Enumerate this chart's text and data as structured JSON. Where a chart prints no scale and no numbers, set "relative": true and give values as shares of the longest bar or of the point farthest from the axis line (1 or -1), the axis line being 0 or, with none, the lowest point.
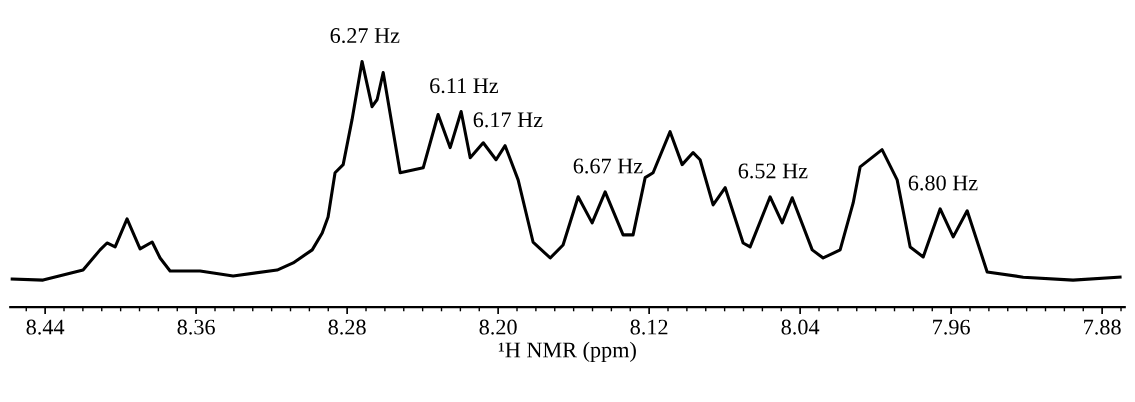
{
  "chart_data": {
    "type": "line",
    "relative": true,
    "xlabel": "¹H NMR (ppm)",
    "xlim": [
      8.4585,
      7.868
    ],
    "xticks": [
      8.44,
      8.36,
      8.28,
      {
        "value": 8.2,
        "label": "8.20"
      },
      8.12,
      8.04,
      7.96,
      7.88
    ],
    "grid": false,
    "legend": false,
    "marker": "none",
    "line_style": "solid",
    "series": [
      {
        "color": "#000000",
        "x": [
          8.4575,
          8.4411,
          8.4199,
          8.4109,
          8.4072,
          8.4029,
          8.3966,
          8.3897,
          8.3833,
          8.3791,
          8.3738,
          8.3579,
          8.3404,
          8.3171,
          8.3086,
          8.2985,
          8.2932,
          8.2901,
          8.2864,
          8.2821,
          8.2774,
          8.2721,
          8.2668,
          8.2641,
          8.2609,
          8.2519,
          8.2397,
          8.2318,
          8.2254,
          8.2196,
          8.2148,
          8.2079,
          8.2011,
          8.1963,
          8.1894,
          8.1815,
          8.1724,
          8.1656,
          8.1576,
          8.1502,
          8.1433,
          8.1338,
          8.1285,
          8.1221,
          8.1179,
          8.1089,
          8.1025,
          8.0967,
          8.093,
          8.0861,
          8.0797,
          8.0702,
          8.0665,
          8.0559,
          8.0495,
          8.0442,
          8.0336,
          8.0278,
          8.0188,
          8.0119,
          8.0082,
          7.9966,
          7.9886,
          7.9817,
          7.9748,
          7.9658,
          7.9589,
          7.9515,
          7.9409,
          7.9218,
          7.8954,
          7.8705
        ],
        "values": [
          0.114,
          0.11,
          0.151,
          0.233,
          0.261,
          0.245,
          0.359,
          0.237,
          0.265,
          0.2,
          0.147,
          0.147,
          0.127,
          0.151,
          0.18,
          0.233,
          0.302,
          0.367,
          0.547,
          0.58,
          0.763,
          1.0,
          0.816,
          0.845,
          0.955,
          0.547,
          0.567,
          0.784,
          0.649,
          0.796,
          0.608,
          0.669,
          0.6,
          0.657,
          0.518,
          0.265,
          0.2,
          0.253,
          0.449,
          0.343,
          0.469,
          0.294,
          0.294,
          0.527,
          0.547,
          0.714,
          0.58,
          0.629,
          0.6,
          0.416,
          0.486,
          0.261,
          0.245,
          0.449,
          0.343,
          0.445,
          0.233,
          0.2,
          0.233,
          0.424,
          0.571,
          0.641,
          0.518,
          0.245,
          0.204,
          0.4,
          0.286,
          0.392,
          0.143,
          0.122,
          0.11,
          0.122
        ]
      }
    ],
    "annotations": [
      {
        "text": "6.27 Hz",
        "x": 8.2721,
        "y": 1.0
      },
      {
        "text": "6.11 Hz",
        "x": 8.2196,
        "y": 0.796
      },
      {
        "text": "6.17 Hz",
        "x": 8.1963,
        "y": 0.657
      },
      {
        "text": "6.67 Hz",
        "x": 8.1433,
        "y": 0.469
      },
      {
        "text": "6.52 Hz",
        "x": 8.0559,
        "y": 0.449
      },
      {
        "text": "6.80 Hz",
        "x": 7.9658,
        "y": 0.4
      }
    ]
  }
}
